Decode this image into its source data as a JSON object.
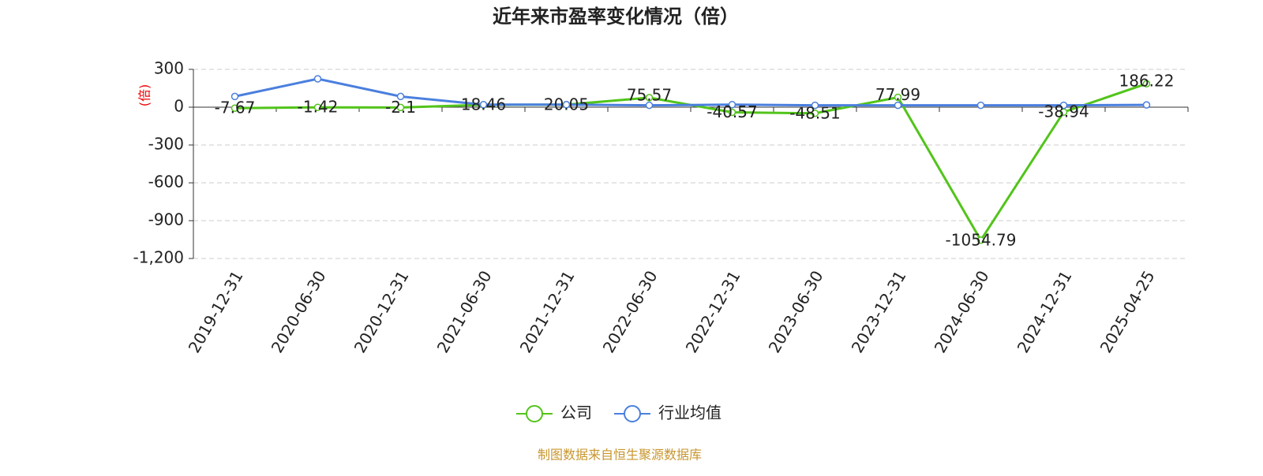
{
  "chart_data": {
    "type": "line",
    "title": "近年来市盈率变化情况（倍）",
    "y_label": "(倍)",
    "categories": [
      "2019-12-31",
      "2020-06-30",
      "2020-12-31",
      "2021-06-30",
      "2021-12-31",
      "2022-06-30",
      "2022-12-31",
      "2023-06-30",
      "2023-12-31",
      "2024-06-30",
      "2024-12-31",
      "2025-04-25"
    ],
    "series": [
      {
        "name": "公司",
        "color": "#52c41a",
        "values": [
          -7.67,
          -1.42,
          -2.1,
          18.46,
          20.05,
          75.57,
          -40.57,
          -48.51,
          77.99,
          -1054.79,
          -38.94,
          186.22
        ]
      },
      {
        "name": "行业均值",
        "color": "#4a7fde",
        "values": [
          85,
          225,
          85,
          20,
          20,
          15,
          20,
          15,
          15,
          15,
          15,
          18
        ]
      }
    ],
    "ylim": [
      -1200,
      300
    ],
    "yticks": [
      {
        "value": -1200,
        "label": "-1,200"
      },
      -900,
      -600,
      -300,
      0,
      300
    ],
    "grid": true,
    "source": "制图数据来自恒生聚源数据库"
  }
}
